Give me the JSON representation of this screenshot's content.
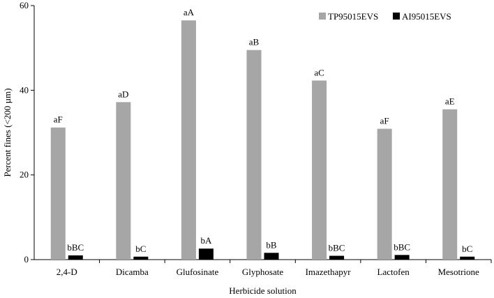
{
  "chart_data": {
    "type": "bar",
    "xlabel": "Herbicide solution",
    "ylabel": "Percent fines (<200  µm)",
    "ylim": [
      0,
      60
    ],
    "yticks": [
      0,
      20,
      40,
      60
    ],
    "grid": false,
    "legend_position": "top-right",
    "categories": [
      "2,4-D",
      "Dicamba",
      "Glufosinate",
      "Glyphosate",
      "Imazethapyr",
      "Lactofen",
      "Mesotrione"
    ],
    "series": [
      {
        "name": "TP95015EVS",
        "color": "#a6a6a6",
        "values": [
          31.2,
          37.2,
          56.5,
          49.5,
          42.3,
          30.9,
          35.5
        ],
        "labels": [
          "aF",
          "aD",
          "aA",
          "aB",
          "aC",
          "aF",
          "aE"
        ]
      },
      {
        "name": "AI95015EVS",
        "color": "#000000",
        "values": [
          1.0,
          0.7,
          2.6,
          1.6,
          0.9,
          1.1,
          0.7
        ],
        "labels": [
          "bBC",
          "bC",
          "bA",
          "bB",
          "bBC",
          "bBC",
          "bC"
        ]
      }
    ]
  }
}
